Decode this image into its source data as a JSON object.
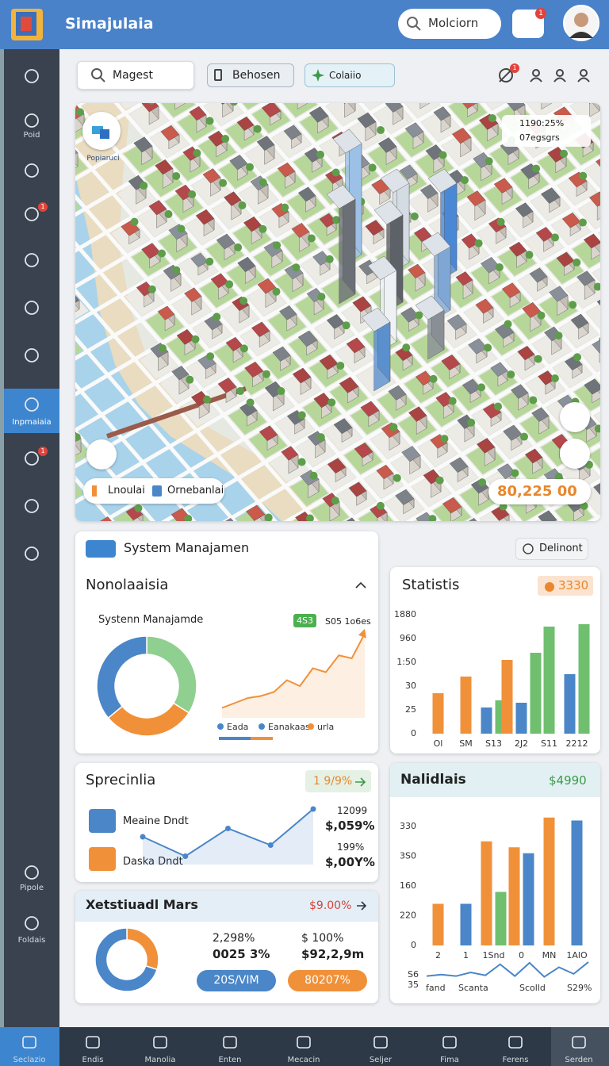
{
  "top_bar": {
    "app_name": "Simajulaia",
    "search_text": "Molciorn",
    "notification_badge": "1"
  },
  "sidebar": {
    "labels": [
      "Poid",
      "Inpmaiaia",
      "Pipole",
      "Foldais"
    ],
    "badges": [
      "1",
      "1"
    ]
  },
  "toolbar": {
    "search_text": "Magest",
    "dropdown": "Behosen",
    "filter": "Colaiio",
    "alert_badge": "1"
  },
  "map": {
    "location_label": "Popiaruci",
    "stat_lines": [
      "1190:25%",
      "07egsgrs"
    ],
    "legend": [
      "Lnoulai",
      "Ornebanlai"
    ],
    "total": "80,225 00"
  },
  "delete_button": "Delinont",
  "system_card": {
    "header": "System Manajamen",
    "title": "Nonolaaisia",
    "donut_label": "Systenn Manajamde",
    "donut": {
      "values": [
        34,
        30,
        36
      ],
      "colors": [
        "#8fcf8f",
        "#f0913a",
        "#4a86c8"
      ]
    },
    "trend": {
      "badge": "4S3",
      "label": "S05 1o6es",
      "color": "#f0913a",
      "ylim": [
        0,
        10
      ],
      "values": [
        1,
        1.5,
        2,
        2.2,
        2.6,
        3.8,
        3.2,
        5,
        4.6,
        6.3,
        6,
        8.5
      ]
    },
    "legend": [
      {
        "label": "Eada",
        "color": "#4a86c8"
      },
      {
        "label": "Eanakaas",
        "color": "#4a86c8"
      },
      {
        "label": "urla",
        "color": "#f0913a"
      }
    ]
  },
  "statistics": {
    "title": "Statistis",
    "badge": "3330",
    "ylim": [
      0,
      5
    ],
    "yticks": [
      {
        "value": 0,
        "label": "0"
      },
      {
        "value": 1,
        "label": "25"
      },
      {
        "value": 2,
        "label": "30"
      },
      {
        "value": 3,
        "label": "1:50"
      },
      {
        "value": 4,
        "label": "960"
      },
      {
        "value": 5,
        "label": "1880"
      }
    ],
    "categories": [
      "Ol",
      "SM",
      "S13",
      "2J2",
      "S11",
      "2212"
    ],
    "series": [
      {
        "color": "#f0913a",
        "values": [
          1.7,
          2.4,
          null,
          3.1,
          null,
          null
        ]
      },
      {
        "color": "#4a86c8",
        "values": [
          null,
          null,
          1.1,
          1.3,
          null,
          2.5
        ]
      },
      {
        "color": "#6fbf6f",
        "values": [
          null,
          null,
          1.4,
          3.4,
          4.5,
          4.6
        ]
      }
    ]
  },
  "specialia": {
    "title": "Sprecinlia",
    "badge": "1 9/9%",
    "items": [
      "Meaine Dndt",
      "Daska Dndt"
    ],
    "numbers": [
      "12099",
      "$,059%",
      "199%",
      "$,00Y%"
    ],
    "line": {
      "color": "#4a86c8",
      "ylim": [
        0,
        4
      ],
      "values": [
        2.0,
        0.6,
        2.6,
        1.4,
        4.0
      ]
    }
  },
  "market": {
    "title": "Xetstiuadl Mars",
    "badge": "$9.00%",
    "donut": {
      "values": [
        30,
        70
      ],
      "colors": [
        "#f0913a",
        "#4a86c8"
      ]
    },
    "numbers": [
      "2,298%",
      "0025 3%",
      "$ 100%",
      "$92,2,9m"
    ],
    "buttons": [
      "20S/VIM",
      "80207%"
    ]
  },
  "nalidlais": {
    "title": "Nalidlais",
    "badge": "$4990",
    "ylim": [
      0,
      4
    ],
    "yticks": [
      {
        "value": 0,
        "label": "0"
      },
      {
        "value": 1,
        "label": "220"
      },
      {
        "value": 2,
        "label": "160"
      },
      {
        "value": 3,
        "label": "3S0"
      },
      {
        "value": 4,
        "label": "330"
      }
    ],
    "categories": [
      "2",
      "1",
      "1Snd",
      "0",
      "MN",
      "1AlO"
    ],
    "series": [
      {
        "color": "#f0913a",
        "values": [
          1.4,
          null,
          3.5,
          3.3,
          4.3,
          null
        ]
      },
      {
        "color": "#4a86c8",
        "values": [
          null,
          1.4,
          null,
          3.1,
          null,
          4.2
        ]
      },
      {
        "color": "#6fbf6f",
        "values": [
          null,
          null,
          1.8,
          null,
          null,
          null
        ]
      }
    ],
    "sparkline": {
      "color": "#4a86c8",
      "ylim": [
        0,
        3
      ],
      "values": [
        1,
        1.2,
        1.0,
        1.5,
        1.1,
        2.6,
        1.0,
        2.8,
        0.9,
        2.2,
        1.3,
        2.9
      ],
      "left_labels": [
        "S6",
        "35"
      ],
      "x_labels": [
        "fand",
        "Scanta",
        "Scolld",
        "S29%"
      ]
    }
  },
  "bottom_nav": [
    "Seclazio",
    "Endis",
    "Manolia",
    "Enten",
    "Mecacin",
    "Seljer",
    "Fima",
    "Ferens",
    "Serden"
  ]
}
